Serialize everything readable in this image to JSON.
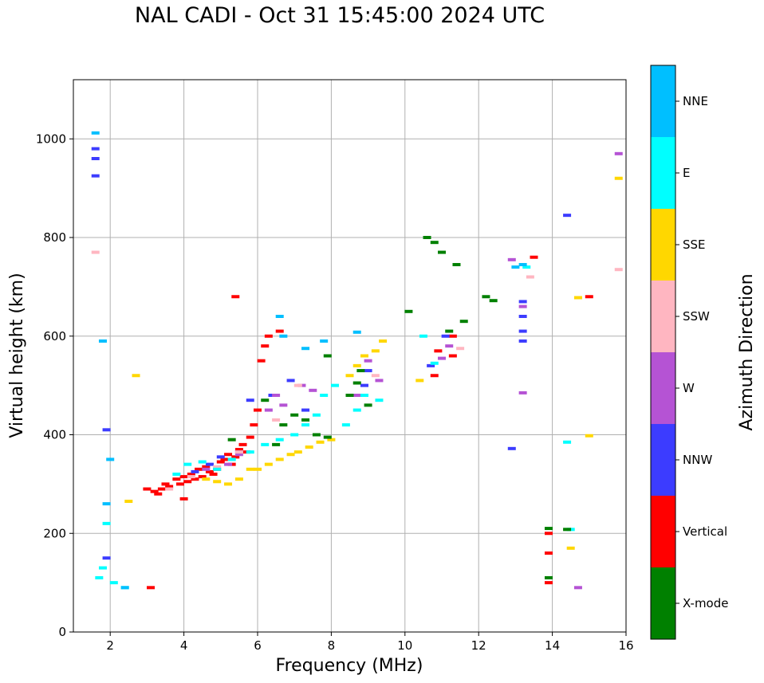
{
  "chart_data": {
    "type": "scatter",
    "title": "NAL CADI - Oct 31 15:45:00 2024 UTC",
    "xlabel": "Frequency (MHz)",
    "ylabel": "Virtual height (km)",
    "xlim": [
      1,
      16
    ],
    "ylim": [
      0,
      1120
    ],
    "xticks": [
      2,
      4,
      6,
      8,
      10,
      12,
      14,
      16
    ],
    "yticks": [
      0,
      200,
      400,
      600,
      800,
      1000
    ],
    "grid": true,
    "colorbar": {
      "label": "Azimuth Direction",
      "categories": [
        {
          "name": "X-mode",
          "color": "#008000"
        },
        {
          "name": "Vertical",
          "color": "#ff0000"
        },
        {
          "name": "NNW",
          "color": "#3c3cff"
        },
        {
          "name": "W",
          "color": "#b553d4"
        },
        {
          "name": "SSW",
          "color": "#ffb6c1"
        },
        {
          "name": "SSE",
          "color": "#ffd700"
        },
        {
          "name": "E",
          "color": "#00ffff"
        },
        {
          "name": "NNE",
          "color": "#00bfff"
        }
      ]
    },
    "series": [
      {
        "name": "Vertical",
        "points": [
          [
            3.0,
            290
          ],
          [
            3.2,
            285
          ],
          [
            3.4,
            290
          ],
          [
            3.5,
            300
          ],
          [
            3.6,
            295
          ],
          [
            3.8,
            310
          ],
          [
            3.9,
            300
          ],
          [
            4.0,
            315
          ],
          [
            4.1,
            305
          ],
          [
            4.2,
            320
          ],
          [
            4.3,
            310
          ],
          [
            4.4,
            330
          ],
          [
            4.5,
            315
          ],
          [
            4.6,
            335
          ],
          [
            4.7,
            325
          ],
          [
            4.8,
            320
          ],
          [
            4.9,
            330
          ],
          [
            5.0,
            345
          ],
          [
            5.1,
            350
          ],
          [
            5.2,
            360
          ],
          [
            5.3,
            340
          ],
          [
            5.4,
            355
          ],
          [
            5.5,
            370
          ],
          [
            5.6,
            380
          ],
          [
            5.7,
            365
          ],
          [
            5.8,
            395
          ],
          [
            5.9,
            420
          ],
          [
            6.0,
            450
          ],
          [
            6.1,
            550
          ],
          [
            6.2,
            580
          ],
          [
            5.4,
            680
          ],
          [
            4.0,
            270
          ],
          [
            3.3,
            280
          ],
          [
            3.1,
            90
          ],
          [
            6.3,
            600
          ],
          [
            6.6,
            610
          ],
          [
            10.8,
            520
          ],
          [
            10.9,
            570
          ],
          [
            11.3,
            560
          ],
          [
            11.3,
            600
          ],
          [
            13.9,
            100
          ],
          [
            13.9,
            160
          ],
          [
            13.9,
            200
          ],
          [
            15.0,
            680
          ],
          [
            13.5,
            760
          ]
        ]
      },
      {
        "name": "NNW",
        "points": [
          [
            1.6,
            925
          ],
          [
            1.6,
            960
          ],
          [
            1.6,
            980
          ],
          [
            1.9,
            410
          ],
          [
            1.9,
            150
          ],
          [
            4.3,
            325
          ],
          [
            4.7,
            340
          ],
          [
            5.0,
            355
          ],
          [
            5.5,
            365
          ],
          [
            5.8,
            470
          ],
          [
            6.4,
            480
          ],
          [
            6.9,
            510
          ],
          [
            7.3,
            450
          ],
          [
            8.9,
            500
          ],
          [
            9.0,
            530
          ],
          [
            10.7,
            540
          ],
          [
            11.1,
            600
          ],
          [
            13.2,
            590
          ],
          [
            13.2,
            610
          ],
          [
            13.2,
            640
          ],
          [
            13.2,
            670
          ],
          [
            14.4,
            845
          ],
          [
            12.9,
            372
          ]
        ]
      },
      {
        "name": "W",
        "points": [
          [
            4.6,
            330
          ],
          [
            5.2,
            340
          ],
          [
            5.5,
            360
          ],
          [
            6.3,
            450
          ],
          [
            6.5,
            480
          ],
          [
            6.7,
            460
          ],
          [
            7.2,
            500
          ],
          [
            7.5,
            490
          ],
          [
            8.7,
            480
          ],
          [
            9.0,
            550
          ],
          [
            9.3,
            510
          ],
          [
            11.2,
            580
          ],
          [
            11.0,
            555
          ],
          [
            12.9,
            755
          ],
          [
            13.2,
            485
          ],
          [
            13.2,
            660
          ],
          [
            14.7,
            90
          ],
          [
            15.8,
            970
          ]
        ]
      },
      {
        "name": "SSW",
        "points": [
          [
            1.6,
            770
          ],
          [
            3.6,
            290
          ],
          [
            4.2,
            315
          ],
          [
            4.9,
            335
          ],
          [
            5.5,
            365
          ],
          [
            6.5,
            430
          ],
          [
            7.1,
            500
          ],
          [
            9.2,
            520
          ],
          [
            11.5,
            575
          ],
          [
            13.4,
            720
          ],
          [
            15.8,
            735
          ]
        ]
      },
      {
        "name": "SSE",
        "points": [
          [
            2.5,
            265
          ],
          [
            2.7,
            520
          ],
          [
            4.6,
            310
          ],
          [
            4.9,
            305
          ],
          [
            5.2,
            300
          ],
          [
            5.5,
            310
          ],
          [
            5.8,
            330
          ],
          [
            6.0,
            330
          ],
          [
            6.3,
            340
          ],
          [
            6.6,
            350
          ],
          [
            6.9,
            360
          ],
          [
            7.1,
            365
          ],
          [
            7.4,
            375
          ],
          [
            7.7,
            385
          ],
          [
            8.0,
            390
          ],
          [
            8.5,
            520
          ],
          [
            8.7,
            540
          ],
          [
            8.9,
            560
          ],
          [
            9.2,
            570
          ],
          [
            9.4,
            590
          ],
          [
            10.4,
            510
          ],
          [
            14.5,
            170
          ],
          [
            14.7,
            678
          ],
          [
            15.0,
            398
          ],
          [
            15.8,
            920
          ]
        ]
      },
      {
        "name": "E",
        "points": [
          [
            1.7,
            110
          ],
          [
            1.8,
            130
          ],
          [
            1.9,
            220
          ],
          [
            2.1,
            100
          ],
          [
            2.4,
            90
          ],
          [
            3.8,
            320
          ],
          [
            4.1,
            340
          ],
          [
            4.5,
            345
          ],
          [
            4.9,
            330
          ],
          [
            5.3,
            350
          ],
          [
            5.8,
            365
          ],
          [
            6.2,
            380
          ],
          [
            6.6,
            390
          ],
          [
            7.0,
            400
          ],
          [
            7.3,
            420
          ],
          [
            7.6,
            440
          ],
          [
            7.8,
            480
          ],
          [
            8.1,
            500
          ],
          [
            8.4,
            420
          ],
          [
            8.7,
            450
          ],
          [
            8.9,
            480
          ],
          [
            9.3,
            470
          ],
          [
            10.5,
            600
          ],
          [
            10.8,
            545
          ],
          [
            13.3,
            740
          ],
          [
            14.4,
            385
          ],
          [
            14.5,
            208
          ]
        ]
      },
      {
        "name": "NNE",
        "points": [
          [
            1.6,
            1012
          ],
          [
            1.8,
            590
          ],
          [
            1.9,
            260
          ],
          [
            2.0,
            350
          ],
          [
            2.4,
            90
          ],
          [
            6.6,
            640
          ],
          [
            6.7,
            600
          ],
          [
            7.3,
            575
          ],
          [
            7.8,
            590
          ],
          [
            8.7,
            608
          ],
          [
            13.2,
            745
          ],
          [
            13.0,
            740
          ]
        ]
      },
      {
        "name": "X-mode",
        "points": [
          [
            5.3,
            390
          ],
          [
            6.2,
            470
          ],
          [
            6.7,
            420
          ],
          [
            7.0,
            440
          ],
          [
            7.3,
            430
          ],
          [
            7.6,
            400
          ],
          [
            7.9,
            395
          ],
          [
            8.5,
            480
          ],
          [
            8.7,
            505
          ],
          [
            8.8,
            530
          ],
          [
            9.0,
            460
          ],
          [
            10.1,
            650
          ],
          [
            10.6,
            800
          ],
          [
            10.8,
            790
          ],
          [
            11.0,
            770
          ],
          [
            11.4,
            745
          ],
          [
            11.2,
            610
          ],
          [
            11.6,
            630
          ],
          [
            12.4,
            672
          ],
          [
            12.2,
            680
          ],
          [
            13.9,
            210
          ],
          [
            13.9,
            110
          ],
          [
            14.4,
            208
          ],
          [
            6.5,
            380
          ],
          [
            7.9,
            560
          ]
        ]
      }
    ]
  }
}
